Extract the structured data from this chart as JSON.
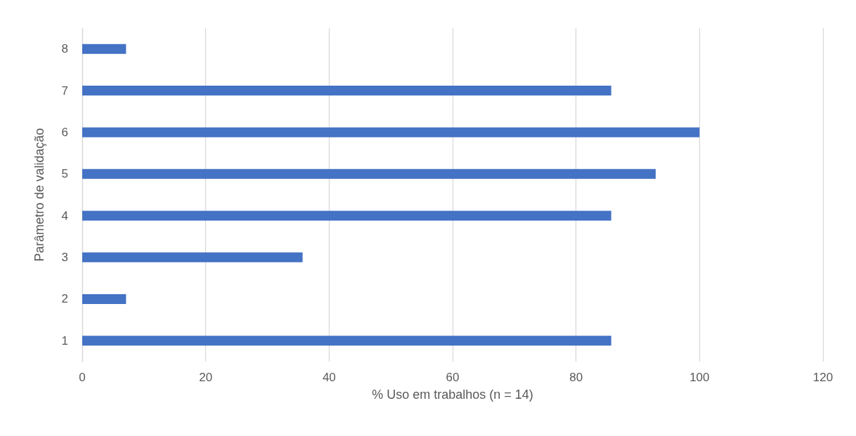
{
  "chart_data": {
    "type": "bar",
    "orientation": "horizontal",
    "xlabel": "% Uso em trabalhos (n = 14)",
    "ylabel": "Parâmetro de validação",
    "categories": [
      "8",
      "7",
      "6",
      "5",
      "4",
      "3",
      "2",
      "1"
    ],
    "values": [
      7.1,
      85.7,
      100,
      92.9,
      85.7,
      35.7,
      7.1,
      85.7
    ],
    "color": "#4472c4",
    "xlim": [
      0,
      120
    ],
    "xticks": [
      0,
      20,
      40,
      60,
      80,
      100,
      120
    ],
    "grid": "x"
  }
}
